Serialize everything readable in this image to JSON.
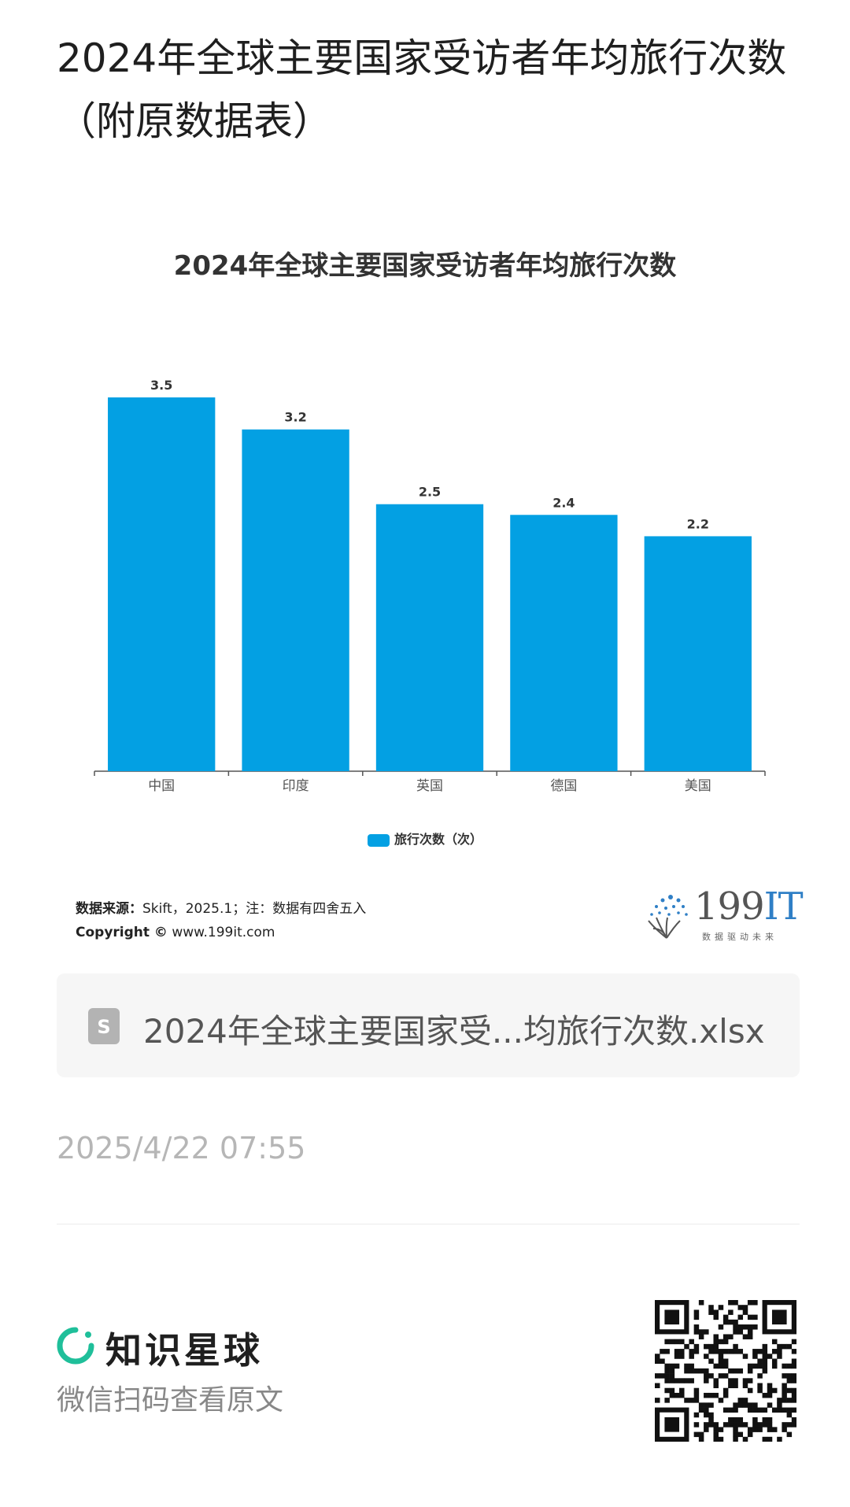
{
  "page": {
    "title": "2024年全球主要国家受访者年均旅行次数（附原数据表）"
  },
  "chart_data": {
    "type": "bar",
    "title": "2024年全球主要国家受访者年均旅行次数",
    "categories": [
      "中国",
      "印度",
      "英国",
      "德国",
      "美国"
    ],
    "series": [
      {
        "name": "旅行次数（次）",
        "values": [
          3.5,
          3.2,
          2.5,
          2.4,
          2.2
        ]
      }
    ],
    "data_labels": [
      "3.5",
      "3.2",
      "2.5",
      "2.4",
      "2.2"
    ],
    "ylim": [
      0,
      3.5
    ],
    "grid": false,
    "legend_position": "bottom",
    "bar_color": "#03a0e3"
  },
  "legend": {
    "label": "旅行次数（次）"
  },
  "source": {
    "label": "数据来源：",
    "text": "Skift，2025.1；注：数据有四舍五入",
    "copyright_label": "Copyright ©",
    "site": "www.199it.com"
  },
  "logo": {
    "main": "199",
    "accent": "IT",
    "tagline": "数据驱动未来"
  },
  "file": {
    "icon": "spreadsheet-icon",
    "icon_letter": "S",
    "name": "2024年全球主要国家受...均旅行次数.xlsx"
  },
  "timestamp": "2025/4/22 07:55",
  "footer": {
    "brand": "知识星球",
    "hint": "微信扫码查看原文",
    "brand_color": "#1fbf9a"
  }
}
